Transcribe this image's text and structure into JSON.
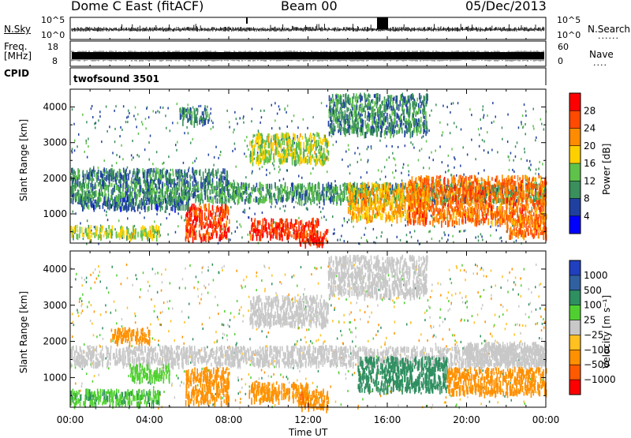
{
  "header": {
    "radar": "Dome C East (fitACF)",
    "beam": "Beam 00",
    "date": "05/Dec/2013"
  },
  "strip": {
    "nsky_label": "N.Sky",
    "nsky_top": "10^5",
    "nsky_bottom": "10^0",
    "nsearch_top": "10^5",
    "nsearch_bottom": "10^0",
    "nsearch_label": "N.Search",
    "freq_label": "Freq.",
    "freq_unit": "[MHz]",
    "freq_top": "18",
    "freq_bottom": "8",
    "nave_top": "60",
    "nave_bottom": "0",
    "nave_label": "Nave",
    "cpid_label": "CPID",
    "cpid_value": "twofsound 3501"
  },
  "colors": {
    "power": [
      "#0000ff",
      "#2040a0",
      "#3a8f5c",
      "#5fc24a",
      "#ffd000",
      "#ff8c00",
      "#ff4a00",
      "#ff0000"
    ],
    "velocity": [
      "#ff0000",
      "#ff5a00",
      "#ff9000",
      "#ffc020",
      "#c8c8c8",
      "#50d030",
      "#2e8f60",
      "#3060a0",
      "#2040c0"
    ]
  },
  "chart_data": [
    {
      "type": "heatmap",
      "name": "power",
      "ylabel": "Slant Range [km]",
      "ylim": [
        180,
        4500
      ],
      "yticks": [
        "1000",
        "2000",
        "3000",
        "4000"
      ],
      "xticks": [
        "00:00",
        "04:00",
        "08:00",
        "12:00",
        "16:00",
        "20:00",
        "00:00"
      ],
      "colorbar_title": "Power [dB]",
      "colorbar_ticks": [
        "28",
        "24",
        "20",
        "16",
        "12",
        "8",
        "4"
      ],
      "colorbar_range": [
        0,
        32
      ],
      "regions": [
        {
          "x0": 0.0,
          "x1": 24.0,
          "y0": 1400,
          "y1": 1900,
          "level": 11
        },
        {
          "x0": 0.0,
          "x1": 8.0,
          "y0": 1900,
          "y1": 2300,
          "level": 9
        },
        {
          "x0": 0.0,
          "x1": 4.5,
          "y0": 400,
          "y1": 700,
          "level": 16
        },
        {
          "x0": 5.8,
          "x1": 8.0,
          "y0": 350,
          "y1": 1300,
          "level": 27
        },
        {
          "x0": 9.0,
          "x1": 12.5,
          "y0": 400,
          "y1": 900,
          "level": 28
        },
        {
          "x0": 11.5,
          "x1": 13.0,
          "y0": 200,
          "y1": 600,
          "level": 28
        },
        {
          "x0": 9.0,
          "x1": 13.0,
          "y0": 2500,
          "y1": 3300,
          "level": 16
        },
        {
          "x0": 14.0,
          "x1": 18.0,
          "y0": 900,
          "y1": 1900,
          "level": 20
        },
        {
          "x0": 17.0,
          "x1": 24.0,
          "y0": 800,
          "y1": 2100,
          "level": 24
        },
        {
          "x0": 22.0,
          "x1": 24.0,
          "y0": 400,
          "y1": 1000,
          "level": 24
        },
        {
          "x0": 13.0,
          "x1": 18.0,
          "y0": 3300,
          "y1": 4400,
          "level": 10
        },
        {
          "x0": 5.5,
          "x1": 7.0,
          "y0": 3600,
          "y1": 4000,
          "level": 10
        },
        {
          "x0": 0.5,
          "x1": 6.0,
          "y0": 1200,
          "y1": 1500,
          "level": 8
        }
      ]
    },
    {
      "type": "heatmap",
      "name": "velocity",
      "ylabel": "Slant Range [km]",
      "xlabel": "Time UT",
      "ylim": [
        180,
        4500
      ],
      "yticks": [
        "1000",
        "2000",
        "3000",
        "4000"
      ],
      "xticks": [
        "00:00",
        "04:00",
        "08:00",
        "12:00",
        "16:00",
        "20:00",
        "00:00"
      ],
      "colorbar_title": "Velocity [m s⁻¹]",
      "colorbar_ticks": [
        "1000",
        "500",
        "100",
        "25",
        "−25",
        "−100",
        "−500",
        "−1000"
      ],
      "colorbar_range": [
        -1500,
        1500
      ],
      "regions": [
        {
          "x0": 0.0,
          "x1": 24.0,
          "y0": 1400,
          "y1": 1900,
          "value": 0
        },
        {
          "x0": 9.0,
          "x1": 13.0,
          "y0": 2500,
          "y1": 3300,
          "value": 0
        },
        {
          "x0": 0.0,
          "x1": 4.5,
          "y0": 300,
          "y1": 700,
          "value": 80
        },
        {
          "x0": 3.0,
          "x1": 5.0,
          "y0": 1000,
          "y1": 1400,
          "value": 60
        },
        {
          "x0": 5.8,
          "x1": 8.0,
          "y0": 350,
          "y1": 1300,
          "value": -300
        },
        {
          "x0": 9.0,
          "x1": 12.0,
          "y0": 400,
          "y1": 900,
          "value": -150
        },
        {
          "x0": 11.5,
          "x1": 13.0,
          "y0": 200,
          "y1": 700,
          "value": -400
        },
        {
          "x0": 14.5,
          "x1": 19.0,
          "y0": 700,
          "y1": 1600,
          "value": 250
        },
        {
          "x0": 19.0,
          "x1": 24.0,
          "y0": 600,
          "y1": 1300,
          "value": -300
        },
        {
          "x0": 2.0,
          "x1": 4.0,
          "y0": 2000,
          "y1": 2400,
          "value": -200
        },
        {
          "x0": 13.0,
          "x1": 18.0,
          "y0": 3300,
          "y1": 4400,
          "value": 0
        },
        {
          "x0": 20.0,
          "x1": 24.0,
          "y0": 1400,
          "y1": 2000,
          "value": 0
        }
      ]
    }
  ]
}
